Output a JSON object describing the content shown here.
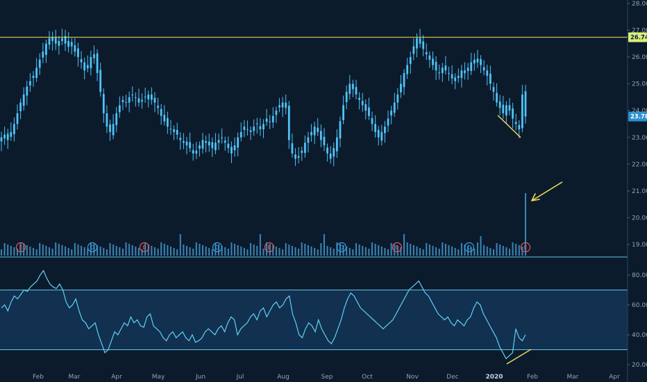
{
  "chart_data": [
    {
      "type": "candlestick",
      "panel": "price",
      "y_axis_ticks": [
        "28.00",
        "27.00",
        "26.00",
        "25.00",
        "24.00",
        "23.00",
        "22.00",
        "21.00",
        "20.00",
        "19.00"
      ],
      "ylim": [
        18.5,
        28.2
      ],
      "resistance_level": 26.74,
      "resistance_label": "26.74",
      "last_price": 23.78,
      "last_price_label": "23.78",
      "month_labels": [
        "Feb",
        "Mar",
        "Apr",
        "May",
        "Jun",
        "Jul",
        "Aug",
        "Sep",
        "Oct",
        "Nov",
        "Dec",
        "2020",
        "Feb",
        "Mar",
        "Apr"
      ],
      "closes": [
        23.0,
        23.1,
        22.9,
        23.2,
        23.5,
        23.9,
        24.3,
        24.6,
        24.9,
        25.1,
        25.3,
        25.6,
        25.9,
        26.2,
        26.5,
        26.7,
        26.6,
        26.5,
        26.6,
        26.7,
        26.5,
        26.6,
        26.4,
        26.2,
        26.0,
        25.8,
        25.5,
        25.7,
        26.0,
        26.1,
        25.4,
        24.7,
        23.9,
        23.4,
        23.2,
        23.5,
        23.9,
        24.2,
        24.4,
        24.3,
        24.5,
        24.6,
        24.5,
        24.3,
        24.4,
        24.5,
        24.6,
        24.4,
        24.3,
        24.1,
        23.8,
        23.6,
        23.4,
        23.3,
        23.2,
        23.1,
        22.9,
        22.8,
        22.7,
        22.6,
        22.4,
        22.5,
        22.7,
        22.9,
        22.8,
        22.7,
        22.6,
        22.8,
        22.9,
        23.0,
        22.8,
        22.6,
        22.4,
        22.7,
        23.0,
        23.2,
        23.4,
        23.3,
        23.2,
        23.4,
        23.5,
        23.3,
        23.5,
        23.7,
        23.6,
        23.8,
        24.0,
        24.2,
        24.3,
        24.1,
        22.9,
        22.4,
        22.2,
        22.3,
        22.5,
        22.8,
        23.0,
        23.2,
        23.4,
        23.2,
        22.9,
        22.7,
        22.4,
        22.2,
        22.6,
        23.0,
        23.6,
        24.2,
        24.7,
        25.0,
        24.8,
        24.6,
        24.4,
        24.2,
        24.0,
        23.8,
        23.5,
        23.2,
        23.0,
        23.2,
        23.4,
        23.7,
        24.0,
        24.3,
        24.6,
        25.0,
        25.4,
        25.7,
        26.0,
        26.4,
        26.7,
        26.5,
        26.3,
        26.1,
        25.9,
        25.7,
        25.5,
        25.4,
        25.6,
        25.5,
        25.4,
        25.2,
        25.1,
        25.3,
        25.5,
        25.4,
        25.6,
        25.8,
        25.9,
        25.8,
        25.7,
        25.5,
        25.3,
        25.0,
        24.7,
        24.3,
        24.1,
        23.9,
        24.2,
        24.0,
        23.7,
        23.5,
        23.3,
        24.6,
        23.78
      ],
      "volume_events": [
        {
          "label": "E",
          "color": "#e05a5a"
        },
        {
          "label": "D",
          "color": "#3aa0e0"
        },
        {
          "label": "E",
          "color": "#e05a5a"
        },
        {
          "label": "D",
          "color": "#3aa0e0"
        },
        {
          "label": "E",
          "color": "#e05a5a"
        },
        {
          "label": "D",
          "color": "#3aa0e0"
        },
        {
          "label": "E",
          "color": "#e05a5a"
        },
        {
          "label": "D",
          "color": "#3aa0e0"
        },
        {
          "label": "E",
          "color": "#e05a5a"
        }
      ]
    },
    {
      "type": "line",
      "panel": "oscillator",
      "y_axis_ticks": [
        "80.00",
        "60.00",
        "40.00",
        "20.00"
      ],
      "ylim": [
        15,
        87
      ],
      "upper_band": 70,
      "lower_band": 30,
      "values": [
        58,
        60,
        56,
        62,
        66,
        64,
        67,
        70,
        69,
        72,
        74,
        76,
        80,
        83,
        78,
        74,
        72,
        71,
        74,
        70,
        62,
        58,
        60,
        64,
        56,
        50,
        48,
        44,
        46,
        48,
        40,
        34,
        28,
        30,
        36,
        42,
        40,
        44,
        48,
        46,
        52,
        48,
        50,
        46,
        45,
        52,
        54,
        46,
        44,
        42,
        38,
        36,
        40,
        42,
        38,
        40,
        42,
        38,
        36,
        40,
        35,
        36,
        38,
        42,
        44,
        42,
        40,
        44,
        46,
        42,
        48,
        52,
        50,
        40,
        44,
        46,
        48,
        52,
        54,
        50,
        56,
        58,
        52,
        56,
        60,
        62,
        58,
        60,
        64,
        66,
        54,
        48,
        40,
        38,
        44,
        48,
        46,
        42,
        50,
        44,
        40,
        36,
        34,
        38,
        44,
        50,
        58,
        64,
        68,
        66,
        62,
        58,
        56,
        54,
        52,
        50,
        48,
        46,
        44,
        46,
        48,
        50,
        54,
        58,
        62,
        66,
        70,
        72,
        74,
        76,
        72,
        68,
        66,
        62,
        58,
        54,
        52,
        50,
        52,
        48,
        46,
        50,
        48,
        46,
        50,
        52,
        58,
        62,
        60,
        54,
        50,
        46,
        42,
        38,
        32,
        28,
        24,
        26,
        28,
        44,
        38,
        36,
        40
      ]
    }
  ],
  "icons": {
    "arrow": "yellow-annotation-arrow"
  },
  "colors": {
    "background": "#0c1b2c",
    "candle": "#4fc3f7",
    "resistance": "#f3e05a",
    "annotation": "#f3e05a",
    "band_fill": "#123050",
    "axis_line": "#5fc6e8",
    "price_badge": "#2a8fcf"
  }
}
